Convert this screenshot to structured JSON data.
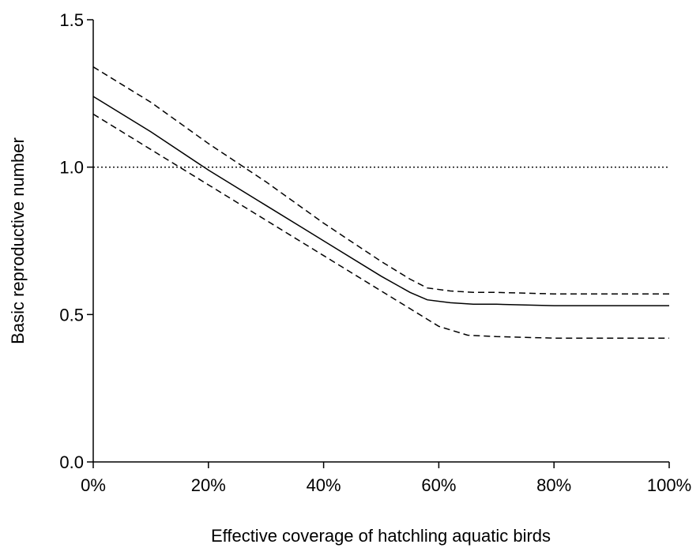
{
  "chart_data": {
    "type": "line",
    "title": "",
    "xlabel": "Effective coverage of hatchling aquatic birds",
    "ylabel": "Basic reproductive number",
    "xlim": [
      0,
      100
    ],
    "ylim": [
      0,
      1.5
    ],
    "x_ticks": [
      0,
      20,
      40,
      60,
      80,
      100
    ],
    "x_tick_labels": [
      "0%",
      "20%",
      "40%",
      "60%",
      "80%",
      "100%"
    ],
    "y_ticks": [
      0,
      0.5,
      1.0,
      1.5
    ],
    "y_tick_labels": [
      "0.0",
      "0.5",
      "1.0",
      "1.5"
    ],
    "grid": false,
    "legend": "none",
    "reference_line": {
      "y": 1.0,
      "style": "dotted"
    },
    "series": [
      {
        "style": "solid",
        "x": [
          0,
          10,
          20,
          30,
          40,
          50,
          55,
          58,
          62,
          66,
          70,
          80,
          90,
          100
        ],
        "y": [
          1.24,
          1.12,
          0.99,
          0.87,
          0.75,
          0.63,
          0.575,
          0.55,
          0.54,
          0.535,
          0.535,
          0.53,
          0.53,
          0.53
        ]
      },
      {
        "style": "dashed",
        "x": [
          0,
          10,
          20,
          30,
          40,
          50,
          55,
          58,
          62,
          66,
          70,
          80,
          90,
          100
        ],
        "y": [
          1.34,
          1.22,
          1.08,
          0.95,
          0.81,
          0.68,
          0.62,
          0.59,
          0.58,
          0.575,
          0.575,
          0.57,
          0.57,
          0.57
        ]
      },
      {
        "style": "dashed",
        "x": [
          0,
          10,
          20,
          30,
          40,
          50,
          55,
          60,
          65,
          70,
          80,
          90,
          100
        ],
        "y": [
          1.18,
          1.06,
          0.94,
          0.82,
          0.7,
          0.58,
          0.52,
          0.46,
          0.43,
          0.425,
          0.42,
          0.42,
          0.42
        ]
      }
    ]
  }
}
